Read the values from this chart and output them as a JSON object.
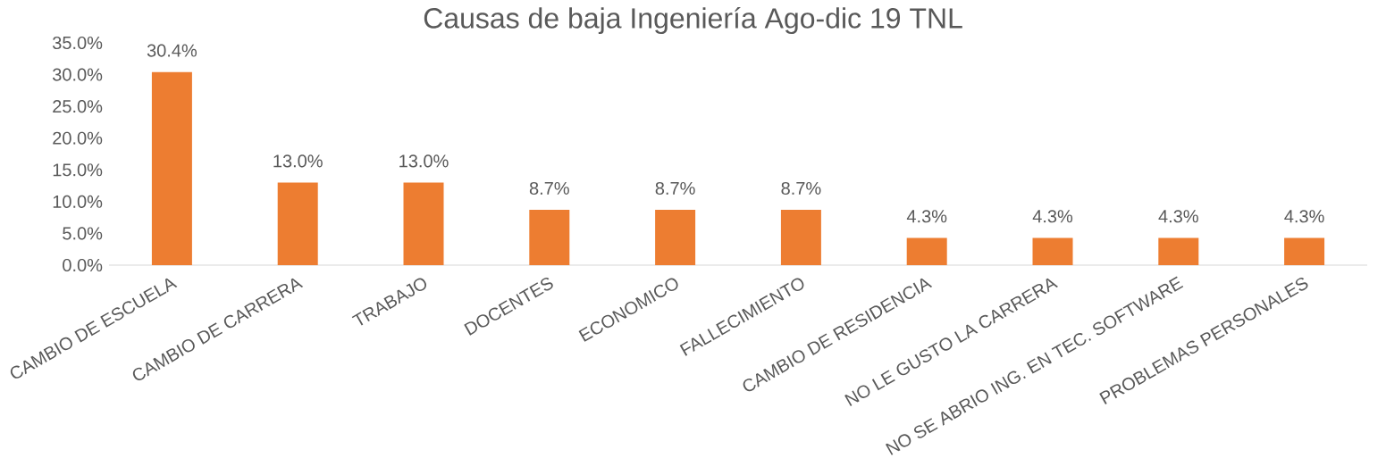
{
  "chart_data": {
    "type": "bar",
    "title": "Causas de baja Ingeniería Ago-dic 19 TNL",
    "categories": [
      "CAMBIO DE ESCUELA",
      "CAMBIO DE CARRERA",
      "TRABAJO",
      "DOCENTES",
      "ECONOMICO",
      "FALLECIMIENTO",
      "CAMBIO DE RESIDENCIA",
      "NO LE GUSTO LA CARRERA",
      "NO SE ABRIO ING. EN TEC. SOFTWARE",
      "PROBLEMAS PERSONALES"
    ],
    "values": [
      30.4,
      13.0,
      13.0,
      8.7,
      8.7,
      8.7,
      4.3,
      4.3,
      4.3,
      4.3
    ],
    "value_labels": [
      "30.4%",
      "13.0%",
      "13.0%",
      "8.7%",
      "8.7%",
      "8.7%",
      "4.3%",
      "4.3%",
      "4.3%",
      "4.3%"
    ],
    "color": "#ed7d31",
    "ylim": [
      0,
      35
    ],
    "yticks": [
      {
        "value": 0,
        "label": "0.0%"
      },
      {
        "value": 5,
        "label": "5.0%"
      },
      {
        "value": 10,
        "label": "10.0%"
      },
      {
        "value": 15,
        "label": "15.0%"
      },
      {
        "value": 20,
        "label": "20.0%"
      },
      {
        "value": 25,
        "label": "25.0%"
      },
      {
        "value": 30,
        "label": "30.0%"
      },
      {
        "value": 35,
        "label": "35.0%"
      }
    ]
  }
}
